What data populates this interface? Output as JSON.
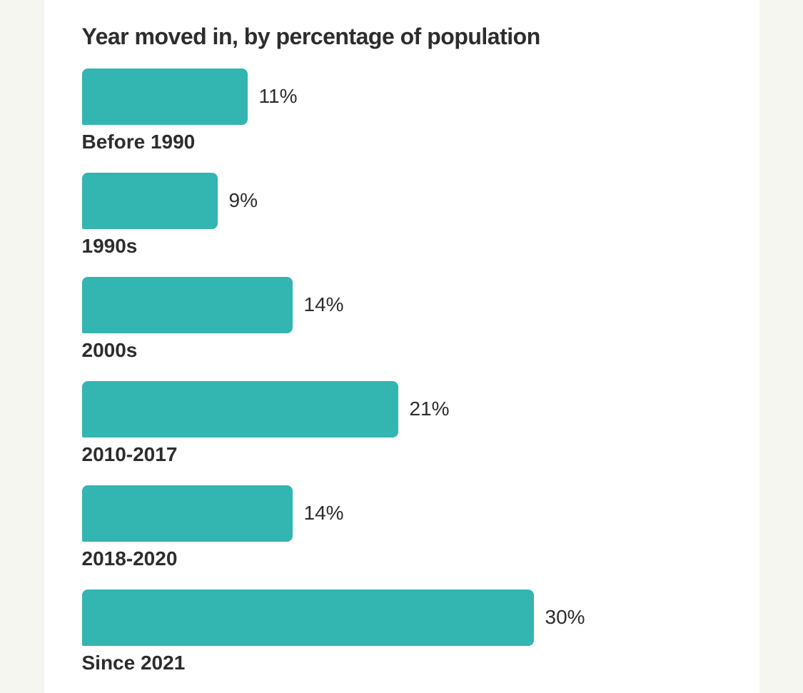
{
  "page": {
    "background_color": "#f6f6f1",
    "card_background_color": "#ffffff",
    "text_color": "#2d2d2d"
  },
  "chart_data": {
    "type": "bar",
    "orientation": "horizontal",
    "title": "Year moved in, by percentage of population",
    "categories": [
      "Before 1990",
      "1990s",
      "2000s",
      "2010-2017",
      "2018-2020",
      "Since 2021"
    ],
    "values": [
      11,
      9,
      14,
      21,
      14,
      30
    ],
    "value_labels": [
      "11%",
      "9%",
      "14%",
      "21%",
      "14%",
      "30%"
    ],
    "unit": "%",
    "xlabel": "",
    "ylabel": "",
    "xlim": [
      0,
      30
    ],
    "grid": false,
    "legend": "none",
    "bar_color": "#33b5b2",
    "label_color": "#2d2d2d",
    "value_label_position": "right-of-bar",
    "category_label_position": "below-bar"
  }
}
